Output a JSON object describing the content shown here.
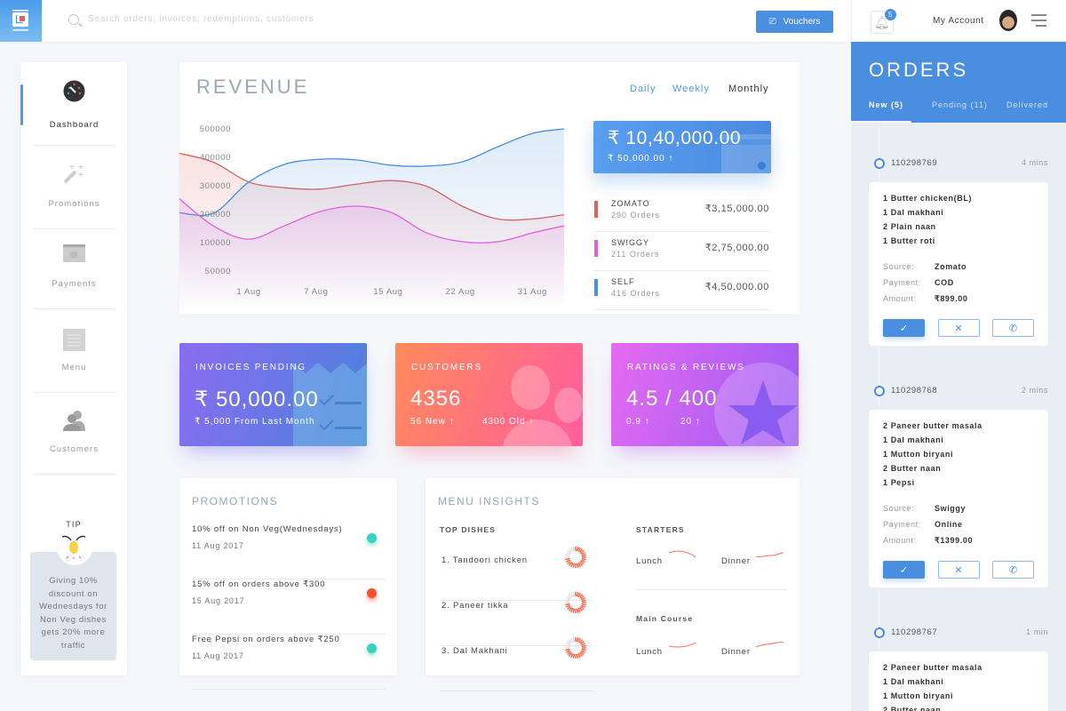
{
  "topbar": {
    "search_placeholder": "Search orders, invoices, redemptions, customers",
    "vouchers_label": "Vouchers",
    "notification_count": "5",
    "account_label": "My Account"
  },
  "sidebar": {
    "items": [
      {
        "label": "Dashboard",
        "icon": "dashboard-icon",
        "active": true
      },
      {
        "label": "Promotions",
        "icon": "magic-wand-icon"
      },
      {
        "label": "Payments",
        "icon": "cash-icon"
      },
      {
        "label": "Menu",
        "icon": "menu-list-icon"
      },
      {
        "label": "Customers",
        "icon": "customers-icon"
      }
    ],
    "tip": {
      "title": "TIP",
      "text": "Giving 10% discount on Wednesdays for Non Veg dishes gets 20% more traffic"
    }
  },
  "revenue": {
    "title": "REVENUE",
    "periods": [
      "Daily",
      "Weekly",
      "Monthly"
    ],
    "selected_period": "Monthly",
    "total": "₹ 10,40,000.00",
    "change": "₹ 50,000.00 ↑",
    "sources": [
      {
        "name": "ZOMATO",
        "orders": "290 Orders",
        "amount": "₹3,15,000.00",
        "color": "#e0605a"
      },
      {
        "name": "SWIGGY",
        "orders": "211 Orders",
        "amount": "₹2,75,000.00",
        "color": "#e060e0"
      },
      {
        "name": "SELF",
        "orders": "416 Orders",
        "amount": "₹4,50,000.00",
        "color": "#4a8ee0"
      }
    ]
  },
  "chart_data": {
    "type": "area",
    "xlabel": "",
    "ylabel": "",
    "x_ticks": [
      {
        "day": 1,
        "label": "1 Aug"
      },
      {
        "day": 8,
        "label": "7 Aug"
      },
      {
        "day": 15.5,
        "label": "15 Aug"
      },
      {
        "day": 23,
        "label": "22 Aug"
      },
      {
        "day": 30.5,
        "label": "31 Aug"
      }
    ],
    "y_ticks": [
      500000,
      400000,
      300000,
      200000,
      100000,
      50000
    ],
    "x_days": [
      -6.4,
      -2.7,
      1,
      4.7,
      8.4,
      12.1,
      15.8,
      19.5,
      23.2,
      26.9,
      30.5,
      33.8
    ],
    "series": [
      {
        "key": "zomato",
        "color": "#e0605a",
        "values": [
          412000,
          380000,
          310000,
          290000,
          285000,
          302000,
          315000,
          295000,
          225000,
          180000,
          180000,
          195000
        ]
      },
      {
        "key": "self",
        "color": "#4a8ee0",
        "values": [
          203000,
          200000,
          310000,
          372000,
          390000,
          388000,
          369000,
          366000,
          381000,
          434000,
          481000,
          497000
        ]
      },
      {
        "key": "swiggy",
        "color": "#e060e0",
        "values": [
          256000,
          156000,
          109000,
          156000,
          206000,
          225000,
          203000,
          131000,
          100000,
          100000,
          131000,
          156000
        ]
      }
    ],
    "grid": false
  },
  "stats": [
    {
      "title": "INVOICES PENDING",
      "value": "₹ 50,000.00",
      "sub1": "₹ 5,000 From Last Month"
    },
    {
      "title": "CUSTOMERS",
      "value": "4356",
      "sub1": "56 New ↑",
      "sub2": "4300 Old ↑"
    },
    {
      "title": "RATINGS & REVIEWS",
      "value": "4.5 / 400",
      "sub1": "0.9 ↑",
      "sub2": "20 ↑"
    }
  ],
  "promotions": {
    "title": "PROMOTIONS",
    "items": [
      {
        "name": "10% off on Non Veg(Wednesdays)",
        "date": "11 Aug 2017",
        "color": "#36d1c0"
      },
      {
        "name": "15% off on orders above ₹300",
        "date": "15 Aug 2017",
        "color": "#ff4f2e"
      },
      {
        "name": "Free Pepsi on orders above ₹250",
        "date": "11 Aug 2017",
        "color": "#36d1c0"
      }
    ]
  },
  "insights": {
    "title": "MENU INSIGHTS",
    "top_dishes_label": "TOP DISHES",
    "dishes": [
      {
        "name": "1. Tandoori chicken",
        "share": 0.75
      },
      {
        "name": "2. Paneer tikka",
        "share": 0.72
      },
      {
        "name": "3. Dal Makhani",
        "share": 0.72
      }
    ],
    "starters_label": "STARTERS",
    "main_label": "Main Course",
    "lunch": "Lunch",
    "dinner": "Dinner"
  },
  "orders": {
    "title": "ORDERS",
    "tabs": [
      "New (5)",
      "Pending (11)",
      "Delivered"
    ],
    "list": [
      {
        "id": "110298769",
        "time": "4 mins",
        "items": [
          "1 Butter chicken(BL)",
          "1 Dal makhani",
          "2 Plain naan",
          "1 Butter roti"
        ],
        "source": "Zomato",
        "payment": "COD",
        "amount": "₹899.00"
      },
      {
        "id": "110298768",
        "time": "2 mins",
        "items": [
          "2 Paneer butter masala",
          "1 Dal makhani",
          "1 Mutton biryani",
          "2 Butter naan",
          "1 Pepsi"
        ],
        "source": "Swiggy",
        "payment": "Online",
        "amount": "₹1399.00"
      },
      {
        "id": "110298767",
        "time": "1 min",
        "items": [
          "2 Paneer butter masala",
          "1 Dal makhani",
          "1 Mutton biryani",
          "2 Butter naan"
        ]
      }
    ],
    "labels": {
      "source": "Source:",
      "payment": "Payment:",
      "amount": "Amount:"
    }
  }
}
